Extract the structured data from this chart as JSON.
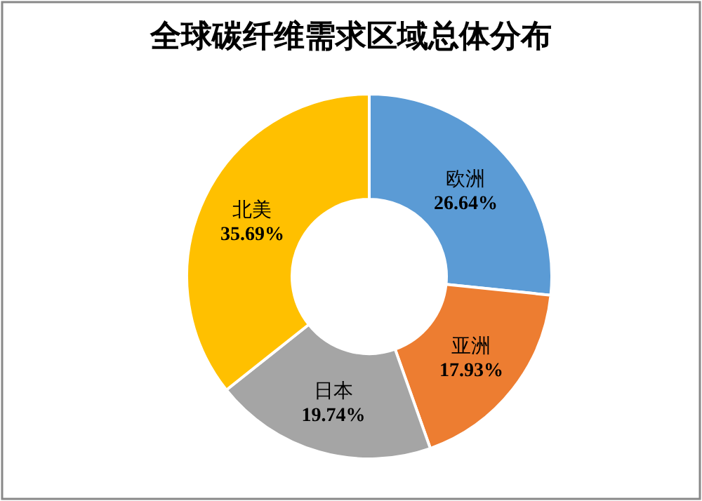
{
  "chart_data": {
    "type": "donut",
    "title": "全球碳纤维需求区域总体分布",
    "categories": [
      "欧洲",
      "亚洲",
      "日本",
      "北美"
    ],
    "values": [
      26.64,
      17.93,
      19.74,
      35.69
    ],
    "colors": [
      "#5b9bd5",
      "#ed7d31",
      "#a5a5a5",
      "#ffc000"
    ],
    "value_labels": [
      "26.64%",
      "17.93%",
      "19.74%",
      "35.69%"
    ]
  }
}
